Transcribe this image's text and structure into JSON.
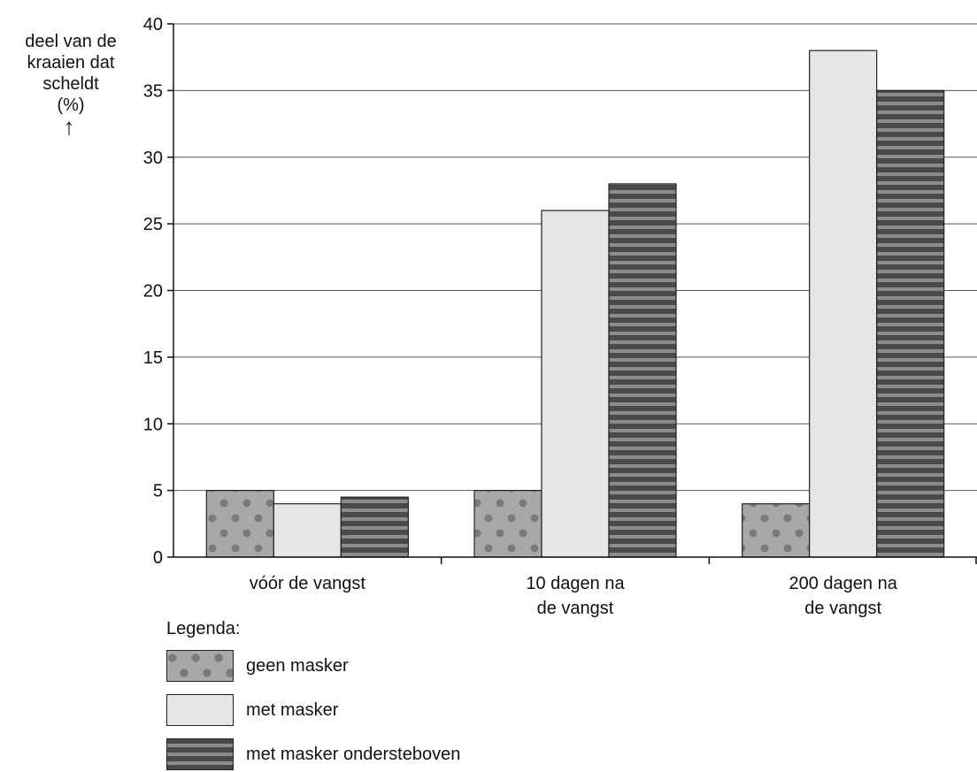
{
  "chart_data": {
    "type": "bar",
    "ylabel_lines": [
      "deel van de",
      "kraaien dat",
      "scheldt",
      "(%)",
      "↑"
    ],
    "categories": [
      [
        "vóór de vangst"
      ],
      [
        "10 dagen na",
        "de vangst"
      ],
      [
        "200 dagen na",
        "de vangst"
      ]
    ],
    "series": [
      {
        "name": "geen masker",
        "values": [
          5,
          5,
          4
        ],
        "pattern": "dots"
      },
      {
        "name": "met masker",
        "values": [
          4,
          26,
          38
        ],
        "pattern": "plain"
      },
      {
        "name": "met masker ondersteboven",
        "values": [
          4.5,
          28,
          35
        ],
        "pattern": "stripes"
      }
    ],
    "ylim": [
      0,
      40
    ],
    "yticks": [
      0,
      5,
      10,
      15,
      20,
      25,
      30,
      35,
      40
    ],
    "grid": true,
    "legend_title": "Legenda:",
    "legend_position": "bottom-left"
  },
  "colors": {
    "dots_bg": "#a8a8a8",
    "dots_fg": "#7a7a7a",
    "plain": "#e6e6e6",
    "stripe_dark": "#4a4a4a",
    "stripe_light": "#8c8c8c",
    "axis": "#111111",
    "grid": "#555555"
  }
}
